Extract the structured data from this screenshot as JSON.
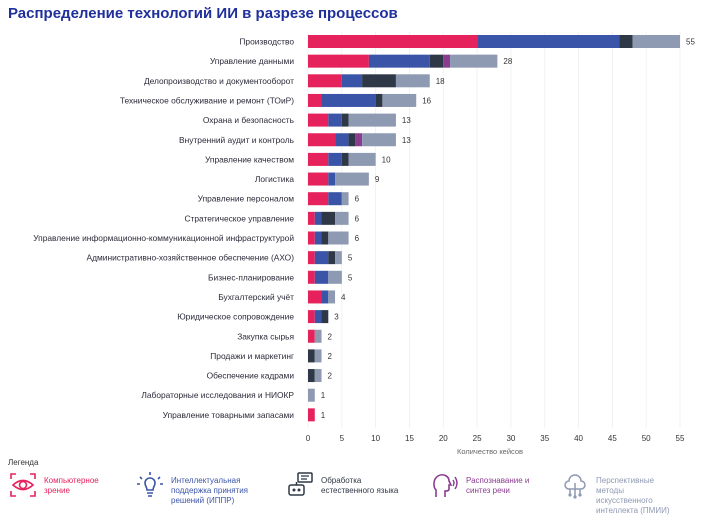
{
  "title": "Распределение технологий ИИ в разрезе процессов",
  "legend_title": "Легенда",
  "colors": {
    "cv": "#e5225c",
    "ippr": "#3a55a8",
    "nlp": "#2f3846",
    "speech": "#8a3d8f",
    "pmii": "#8e99b2"
  },
  "chart_data": {
    "type": "bar",
    "orientation": "horizontal",
    "stacked": true,
    "xlabel": "Количество кейсов",
    "xlim": [
      0,
      55
    ],
    "xticks": [
      0,
      5,
      10,
      15,
      20,
      25,
      30,
      35,
      40,
      45,
      50,
      55
    ],
    "categories": [
      "Производство",
      "Управление данными",
      "Делопроизводство и документооборот",
      "Техническое обслуживание и ремонт (ТОиР)",
      "Охрана и безопасность",
      "Внутренний аудит и контроль",
      "Управление качеством",
      "Логистика",
      "Управление персоналом",
      "Стратегическое управление",
      "Управление информационно-коммуникационной инфраструктурой",
      "Административно-хозяйственное обеспечение (АХО)",
      "Бизнес-планирование",
      "Бухгалтерский учёт",
      "Юридическое сопровождение",
      "Закупка сырья",
      "Продажи и маркетинг",
      "Обеспечение кадрами",
      "Лабораторные исследования и НИОКР",
      "Управление товарными запасами"
    ],
    "totals": [
      55,
      28,
      18,
      16,
      13,
      13,
      10,
      9,
      6,
      6,
      6,
      5,
      5,
      4,
      3,
      2,
      2,
      2,
      1,
      1
    ],
    "series": [
      {
        "name": "Компьютерное зрение",
        "color": "#e5225c",
        "values": [
          25,
          9,
          5,
          2,
          3,
          4,
          3,
          3,
          3,
          1,
          1,
          1,
          1,
          2,
          1,
          1,
          0,
          0,
          0,
          1
        ]
      },
      {
        "name": "Интеллектуальная поддержка принятия решений (ИППР)",
        "color": "#3a55a8",
        "values": [
          21,
          9,
          3,
          8,
          2,
          2,
          2,
          1,
          2,
          1,
          1,
          2,
          2,
          1,
          1,
          0,
          0,
          0,
          0,
          0
        ]
      },
      {
        "name": "Обработка естественного языка",
        "color": "#2f3846",
        "values": [
          2,
          2,
          5,
          1,
          1,
          1,
          1,
          0,
          0,
          2,
          1,
          1,
          0,
          0,
          1,
          0,
          1,
          1,
          0,
          0
        ]
      },
      {
        "name": "Распознавание и синтез речи",
        "color": "#8a3d8f",
        "values": [
          0,
          1,
          0,
          0,
          0,
          1,
          0,
          0,
          0,
          0,
          0,
          0,
          0,
          0,
          0,
          0,
          0,
          0,
          0,
          0
        ]
      },
      {
        "name": "Перспективные методы искусственного интеллекта (ПМИИ)",
        "color": "#8e99b2",
        "values": [
          7,
          7,
          5,
          5,
          7,
          5,
          4,
          5,
          1,
          2,
          3,
          1,
          2,
          1,
          0,
          1,
          1,
          1,
          1,
          0
        ]
      }
    ]
  },
  "legend": [
    {
      "label": "Компьютерное зрение",
      "icon": "eye-icon",
      "color": "#e5225c"
    },
    {
      "label": "Интеллектуальная поддержка принятия решений (ИППР)",
      "icon": "lightbulb-icon",
      "color": "#3a55a8"
    },
    {
      "label": "Обработка естественного языка",
      "icon": "chat-robot-icon",
      "color": "#2f3846"
    },
    {
      "label": "Распознавание и синтез речи",
      "icon": "speaking-head-icon",
      "color": "#8a3d8f"
    },
    {
      "label": "Перспективные методы искусственного интеллекта (ПМИИ)",
      "icon": "network-tree-icon",
      "color": "#8e99b2"
    }
  ]
}
